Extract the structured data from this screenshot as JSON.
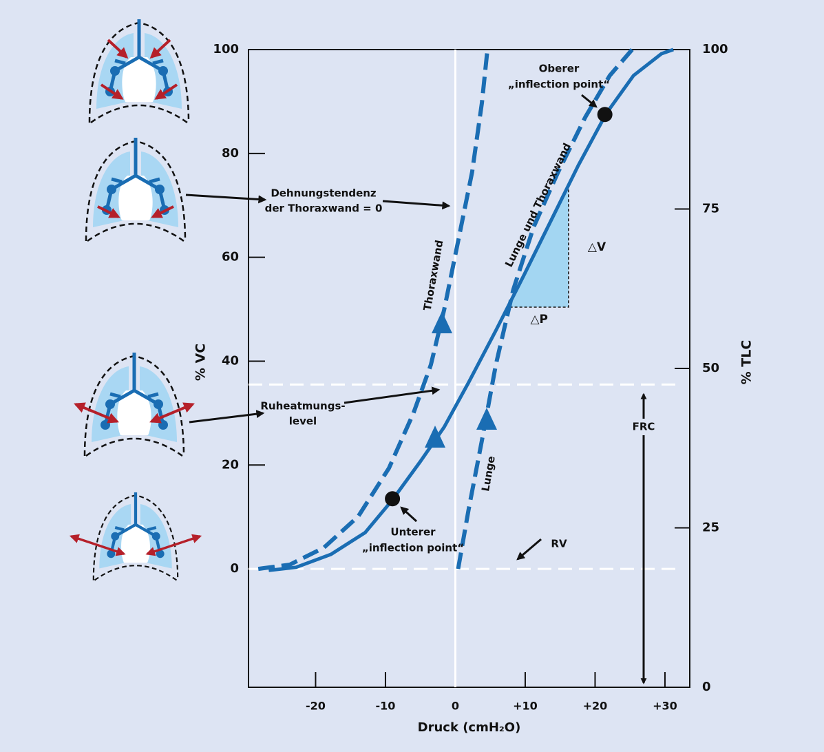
{
  "chart_data": {
    "type": "line",
    "xlabel": "Druck (cmH₂O)",
    "ylabel": "% VC",
    "y2label": "% TLC",
    "xlim": [
      -29.6,
      33.55
    ],
    "ylim": [
      -22.8,
      100
    ],
    "y2lim": [
      0,
      100
    ],
    "xticks": [
      -20,
      -10,
      0,
      {
        "value": 10,
        "label": "+10"
      },
      {
        "value": 20,
        "label": "+20"
      },
      {
        "value": 30,
        "label": "+30"
      }
    ],
    "yticks": [
      0,
      20,
      40,
      60,
      80,
      100
    ],
    "y2ticks": [
      0,
      25,
      50,
      75,
      100
    ],
    "series": [
      {
        "name": "Lunge und Thoraxwand",
        "color": "#1a6db3",
        "dashed": false,
        "x": [
          -26.7,
          -22.8,
          -17.8,
          -12.9,
          -9.0,
          -5.0,
          -1.6,
          1.9,
          5.8,
          9.8,
          13.7,
          17.6,
          21.6,
          25.5,
          29.5,
          31.2
        ],
        "values": [
          -0.3,
          0.3,
          2.8,
          7.0,
          13.3,
          20.7,
          27.3,
          35.9,
          45.9,
          56.5,
          67.1,
          77.7,
          87.7,
          95.0,
          99.2,
          100
        ]
      },
      {
        "name": "Thoraxwand",
        "color": "#1a6db3",
        "dashed": true,
        "x": [
          -28.2,
          -23.7,
          -18.8,
          -13.9,
          -9.5,
          -6.0,
          -3.5,
          -1.6,
          0.4,
          2.4,
          3.8,
          4.6
        ],
        "values": [
          0,
          0.8,
          4.1,
          10.1,
          19.4,
          30.0,
          39.3,
          49.9,
          63.1,
          76.4,
          89.7,
          100
        ]
      },
      {
        "name": "Lunge",
        "color": "#1a6db3",
        "dashed": true,
        "x": [
          0.4,
          1.9,
          3.8,
          5.8,
          8.3,
          11.2,
          14.7,
          18.6,
          22.1,
          25.3
        ],
        "values": [
          0,
          11.4,
          24.7,
          39.3,
          53.8,
          65.8,
          76.4,
          87.0,
          95.0,
          100
        ]
      }
    ],
    "points": [
      {
        "text": [
          "Unterer",
          "„inflection point“"
        ],
        "x": -9.0,
        "y": 13.5
      },
      {
        "text": [
          "Oberer",
          "„inflection point“"
        ],
        "x": 21.4,
        "y": 87.5
      }
    ],
    "levels": [
      {
        "label": [
          "Ruheatmungs-",
          "level"
        ],
        "value": 35.5
      },
      {
        "label": [
          "RV"
        ],
        "value": 0
      }
    ],
    "frc_label": "FRC",
    "annotation": [
      "Dehnungstendenz",
      "der Thoraxwand = 0"
    ],
    "slope_triangle": {
      "x": [
        7.8,
        16.2
      ],
      "y": [
        50.4,
        73.5
      ],
      "labels": [
        "△V",
        "△P"
      ]
    }
  }
}
